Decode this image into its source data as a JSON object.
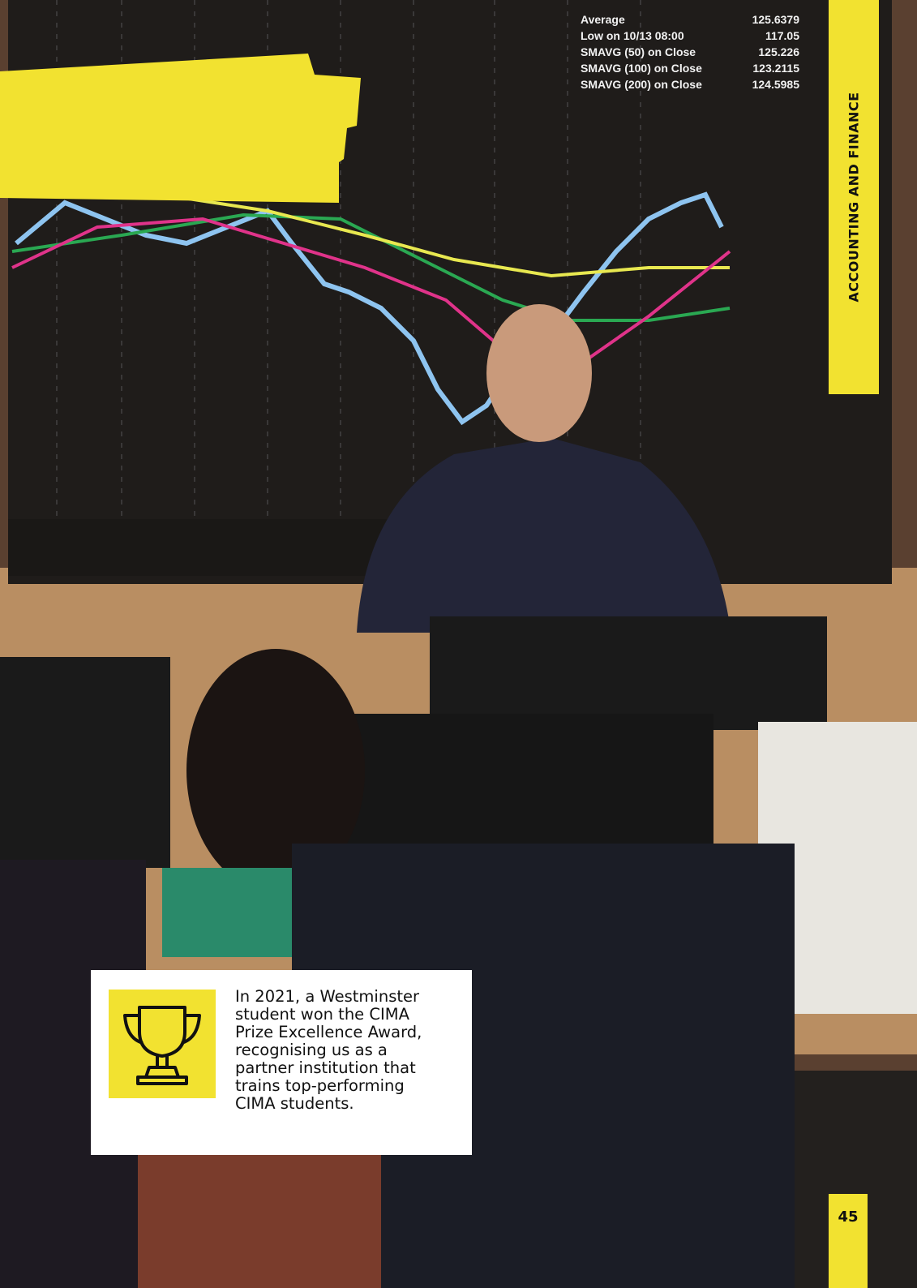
{
  "section_tab": "ACCOUNTING AND FINANCE",
  "screen_legend": [
    {
      "label": "Average",
      "value": "125.6379"
    },
    {
      "label": "Low on 10/13 08:00",
      "value": "117.05"
    },
    {
      "label": "SMAVG (50) on Close",
      "value": "125.226"
    },
    {
      "label": "SMAVG (100) on Close",
      "value": "123.2115"
    },
    {
      "label": "SMAVG (200) on Close",
      "value": "124.5985"
    }
  ],
  "callout": {
    "lines": [
      "In 2021, a Westminster",
      "student won the CIMA",
      "Prize Excellence Award,",
      "recognising us as a",
      "partner institution that",
      "trains top-performing",
      "CIMA students."
    ]
  },
  "page_number": "45"
}
